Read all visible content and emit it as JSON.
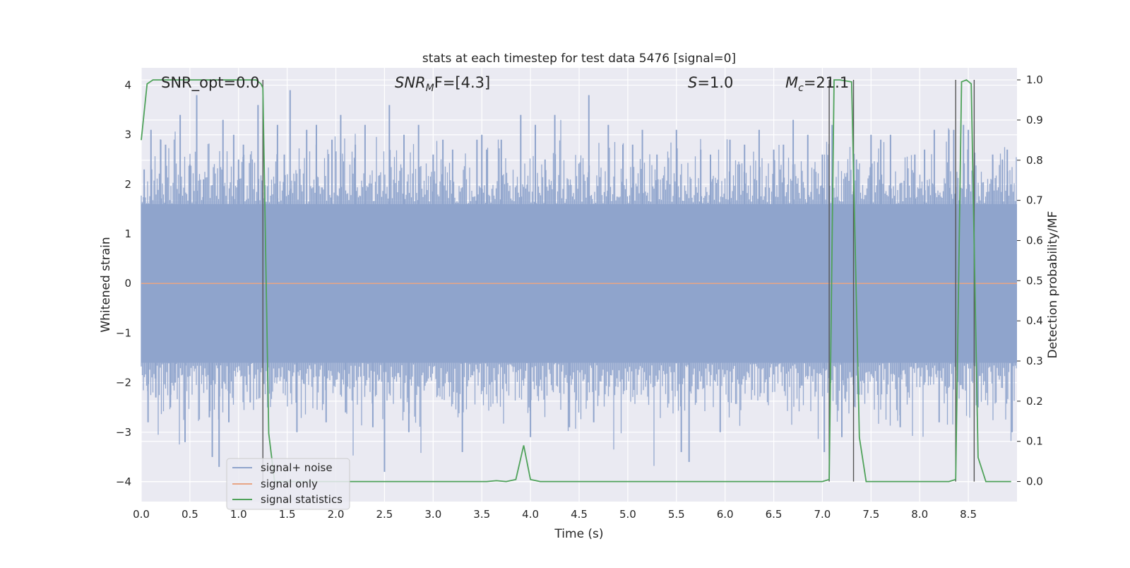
{
  "chart_data": {
    "type": "line",
    "title": "stats at each timestep for test data 5476 [signal=0]",
    "xlabel": "Time (s)",
    "ylabel_left": "Whitened strain",
    "ylabel_right": "Detection probability/MF",
    "xlim": [
      0.0,
      9.0
    ],
    "ylim_left": [
      -4.4,
      4.35
    ],
    "ylim_right": [
      -0.05,
      1.03
    ],
    "x_ticks": [
      "0.0",
      "0.5",
      "1.0",
      "1.5",
      "2.0",
      "2.5",
      "3.0",
      "3.5",
      "4.0",
      "4.5",
      "5.0",
      "5.5",
      "6.0",
      "6.5",
      "7.0",
      "7.5",
      "8.0",
      "8.5"
    ],
    "y_left_ticks": [
      "4",
      "3",
      "2",
      "1",
      "0",
      "−1",
      "−2",
      "−3",
      "−4"
    ],
    "y_right_ticks": [
      "1.0",
      "0.9",
      "0.8",
      "0.7",
      "0.6",
      "0.5",
      "0.4",
      "0.3",
      "0.2",
      "0.1",
      "0.0"
    ],
    "grid": true,
    "legend_position": "lower-left",
    "annotations": {
      "snr_opt": "SNR_opt=0.0",
      "snr_mf_italic": "SNR",
      "snr_mf_sub": "M",
      "snr_mf_rest": "F=[4.3]",
      "s_italic": "S",
      "s_rest": "=1.0",
      "mc_italic": "M",
      "mc_sub": "c",
      "mc_rest": "=21.1"
    },
    "series": [
      {
        "name": "signal+ noise",
        "color": "#8fa4cc",
        "note_values": "whitened Gaussian noise, std about 0.8, peaks near +/-4",
        "envelope_hi": 1.6,
        "envelope_lo": -1.6,
        "peaks": [
          [
            0.03,
            2.3
          ],
          [
            0.07,
            -2.8
          ],
          [
            0.1,
            3.1
          ],
          [
            0.15,
            -2.3
          ],
          [
            0.2,
            2.9
          ],
          [
            0.25,
            2.8
          ],
          [
            0.3,
            -2.5
          ],
          [
            0.35,
            -2.0
          ],
          [
            0.4,
            3.4
          ],
          [
            0.45,
            -3.2
          ],
          [
            0.5,
            2.4
          ],
          [
            0.57,
            3.8
          ],
          [
            0.64,
            2.1
          ],
          [
            0.7,
            -2.7
          ],
          [
            0.73,
            -3.5
          ],
          [
            0.8,
            -3.7
          ],
          [
            0.84,
            3.3
          ],
          [
            0.9,
            -2.8
          ],
          [
            0.95,
            3.0
          ],
          [
            1.0,
            2.5
          ],
          [
            1.05,
            2.8
          ],
          [
            1.12,
            -2.4
          ],
          [
            1.2,
            3.6
          ],
          [
            1.3,
            -2.5
          ],
          [
            1.4,
            3.2
          ],
          [
            1.47,
            2.6
          ],
          [
            1.53,
            3.9
          ],
          [
            1.6,
            -3.0
          ],
          [
            1.7,
            3.1
          ],
          [
            1.8,
            3.2
          ],
          [
            1.9,
            -2.8
          ],
          [
            1.96,
            2.9
          ],
          [
            2.05,
            3.4
          ],
          [
            2.1,
            -2.6
          ],
          [
            2.2,
            2.8
          ],
          [
            2.3,
            3.2
          ],
          [
            2.38,
            -2.9
          ],
          [
            2.5,
            -3.8
          ],
          [
            2.55,
            3.6
          ],
          [
            2.7,
            3.0
          ],
          [
            2.75,
            -3.0
          ],
          [
            2.85,
            3.2
          ],
          [
            3.0,
            2.6
          ],
          [
            3.1,
            2.9
          ],
          [
            3.2,
            2.7
          ],
          [
            3.3,
            -3.4
          ],
          [
            3.45,
            2.9
          ],
          [
            3.5,
            3.0
          ],
          [
            3.55,
            2.7
          ],
          [
            3.7,
            2.9
          ],
          [
            3.9,
            3.4
          ],
          [
            4.0,
            -3.1
          ],
          [
            4.05,
            3.2
          ],
          [
            4.15,
            2.5
          ],
          [
            4.25,
            3.4
          ],
          [
            4.4,
            -2.9
          ],
          [
            4.6,
            3.8
          ],
          [
            4.65,
            -2.8
          ],
          [
            4.8,
            3.2
          ],
          [
            4.95,
            2.8
          ],
          [
            5.05,
            2.8
          ],
          [
            5.15,
            3.1
          ],
          [
            5.3,
            2.6
          ],
          [
            5.5,
            3.1
          ],
          [
            5.55,
            -3.4
          ],
          [
            5.63,
            -3.6
          ],
          [
            5.75,
            2.7
          ],
          [
            5.85,
            2.6
          ],
          [
            5.95,
            -3.0
          ],
          [
            6.05,
            2.9
          ],
          [
            6.2,
            2.8
          ],
          [
            6.35,
            3.1
          ],
          [
            6.5,
            2.7
          ],
          [
            6.6,
            2.8
          ],
          [
            6.7,
            3.3
          ],
          [
            6.85,
            3.0
          ],
          [
            7.0,
            2.6
          ],
          [
            7.02,
            -3.4
          ],
          [
            7.1,
            3.2
          ],
          [
            7.2,
            -3.1
          ],
          [
            7.35,
            2.5
          ],
          [
            7.5,
            3.0
          ],
          [
            7.6,
            2.9
          ],
          [
            7.7,
            3.0
          ],
          [
            7.8,
            -2.9
          ],
          [
            7.95,
            2.6
          ],
          [
            8.05,
            2.7
          ],
          [
            8.15,
            3.1
          ],
          [
            8.2,
            -2.8
          ],
          [
            8.3,
            3.1
          ],
          [
            8.35,
            3.1
          ],
          [
            8.45,
            3.2
          ],
          [
            8.5,
            3.1
          ],
          [
            8.6,
            -2.5
          ],
          [
            8.75,
            2.6
          ],
          [
            8.85,
            2.5
          ],
          [
            8.9,
            2.7
          ],
          [
            8.95,
            -3.0
          ]
        ]
      },
      {
        "name": "signal only",
        "color": "#e8a585",
        "x": [
          0.0,
          9.0
        ],
        "y": [
          0.0,
          0.0
        ]
      },
      {
        "name": "signal statistics",
        "color": "#4fa25a",
        "axis": "right",
        "x": [
          0.0,
          0.06,
          0.12,
          1.18,
          1.23,
          1.25,
          1.31,
          1.37,
          3.55,
          3.65,
          3.75,
          3.85,
          3.93,
          4.0,
          4.1,
          7.0,
          7.07,
          7.12,
          7.18,
          7.3,
          7.38,
          7.45,
          8.3,
          8.37,
          8.43,
          8.48,
          8.53,
          8.6,
          8.68,
          8.94
        ],
        "y": [
          0.85,
          0.99,
          1.0,
          1.0,
          0.99,
          0.98,
          0.12,
          0.0,
          0.0,
          0.002,
          0.0,
          0.005,
          0.09,
          0.005,
          0.0,
          0.0,
          0.005,
          1.0,
          1.0,
          0.995,
          0.11,
          0.0,
          0.0,
          0.005,
          0.995,
          1.0,
          0.99,
          0.06,
          0.0,
          0.0
        ]
      }
    ],
    "vertical_markers_x": [
      1.25,
      7.07,
      7.32,
      8.37,
      8.56
    ]
  }
}
